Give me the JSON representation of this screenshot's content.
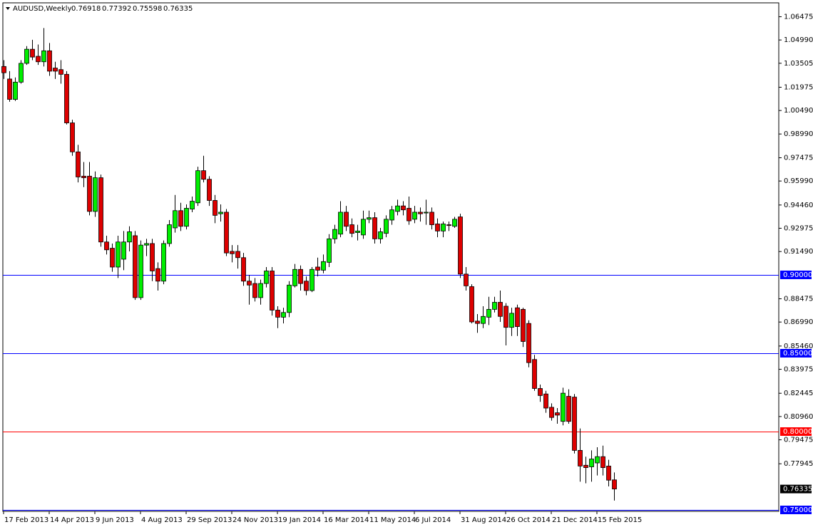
{
  "chart_data": {
    "type": "candlestick",
    "title": "AUDUSD,Weekly",
    "categories": [
      "17 Feb 2013",
      null,
      null,
      null,
      null,
      null,
      null,
      null,
      "14 Apr 2013",
      null,
      null,
      null,
      null,
      null,
      null,
      null,
      "9 Jun 2013",
      null,
      null,
      null,
      null,
      null,
      null,
      null,
      "4 Aug 2013",
      null,
      null,
      null,
      null,
      null,
      null,
      null,
      "29 Sep 2013",
      null,
      null,
      null,
      null,
      null,
      null,
      null,
      "24 Nov 2013",
      null,
      null,
      null,
      null,
      null,
      null,
      null,
      "19 Jan 2014",
      null,
      null,
      null,
      null,
      null,
      null,
      null,
      "16 Mar 2014",
      null,
      null,
      null,
      null,
      null,
      null,
      null,
      "11 May 2014",
      null,
      null,
      null,
      null,
      null,
      null,
      null,
      "6 Jul 2014",
      null,
      null,
      null,
      null,
      null,
      null,
      null,
      "31 Aug 2014",
      null,
      null,
      null,
      null,
      null,
      null,
      null,
      "26 Oct 2014",
      null,
      null,
      null,
      null,
      null,
      null,
      null,
      "21 Dec 2014",
      null,
      null,
      null,
      null,
      null,
      null,
      null,
      "15 Feb 2015",
      null,
      null,
      null
    ],
    "open": [
      1.033,
      1.025,
      1.012,
      1.023,
      1.035,
      1.044,
      1.0395,
      1.036,
      1.043,
      1.032,
      1.031,
      1.028,
      0.997,
      0.9785,
      0.963,
      0.963,
      0.9405,
      0.962,
      0.921,
      0.917,
      0.905,
      0.91,
      0.921,
      0.925,
      0.8855,
      0.919,
      0.92,
      0.904,
      0.896,
      0.92,
      0.93,
      0.941,
      0.931,
      0.942,
      0.946,
      0.9665,
      0.961,
      0.9475,
      0.939,
      0.94,
      0.915,
      0.915,
      0.911,
      0.896,
      0.8945,
      0.8855,
      0.8945,
      0.9025,
      0.8775,
      0.873,
      0.876,
      0.893,
      0.9035,
      0.896,
      0.89,
      0.905,
      0.903,
      0.908,
      0.923,
      0.926,
      0.94,
      0.932,
      0.927,
      0.9255,
      0.9355,
      0.9365,
      0.923,
      0.9265,
      0.935,
      0.9405,
      0.944,
      0.9425,
      0.9355,
      0.94,
      0.9395,
      0.94,
      0.9325,
      0.928,
      0.932,
      0.931,
      0.937,
      0.9005,
      0.8925,
      0.8705,
      0.869,
      0.873,
      0.878,
      0.8825,
      0.88,
      0.8665,
      0.879,
      0.878,
      0.869,
      0.846,
      0.8275,
      0.824,
      0.8155,
      0.812,
      0.8065,
      0.8225,
      0.822,
      0.788,
      0.7785,
      0.7775,
      0.78,
      0.784,
      0.778,
      0.76918
    ],
    "high": [
      1.037,
      1.03,
      1.026,
      1.037,
      1.046,
      1.05,
      1.047,
      1.0575,
      1.048,
      1.036,
      1.037,
      1.03,
      0.999,
      0.983,
      0.972,
      0.972,
      0.966,
      0.964,
      0.925,
      0.92,
      0.925,
      0.928,
      0.931,
      0.928,
      0.922,
      0.923,
      0.923,
      0.908,
      0.922,
      0.935,
      0.951,
      0.946,
      0.945,
      0.95,
      0.969,
      0.976,
      0.963,
      0.951,
      0.945,
      0.942,
      0.919,
      0.919,
      0.914,
      0.9,
      0.898,
      0.897,
      0.905,
      0.905,
      0.88,
      0.879,
      0.896,
      0.907,
      0.906,
      0.899,
      0.905,
      0.911,
      0.913,
      0.926,
      0.932,
      0.947,
      0.944,
      0.936,
      0.932,
      0.941,
      0.941,
      0.94,
      0.93,
      0.938,
      0.944,
      0.948,
      0.947,
      0.95,
      0.944,
      0.943,
      0.948,
      0.943,
      0.936,
      0.934,
      0.934,
      0.937,
      0.939,
      0.905,
      0.894,
      0.875,
      0.88,
      0.886,
      0.886,
      0.89,
      0.882,
      0.879,
      0.881,
      0.879,
      0.871,
      0.849,
      0.83,
      0.826,
      0.818,
      0.815,
      0.828,
      0.827,
      0.824,
      0.802,
      0.784,
      0.788,
      0.79,
      0.791,
      0.782,
      0.77392
    ],
    "low": [
      1.025,
      1.0105,
      1.011,
      1.022,
      1.034,
      1.037,
      1.034,
      1.033,
      1.027,
      1.025,
      1.022,
      0.996,
      0.976,
      0.959,
      0.956,
      0.938,
      0.937,
      0.918,
      0.913,
      0.902,
      0.898,
      0.903,
      0.915,
      0.884,
      0.884,
      0.912,
      0.896,
      0.89,
      0.894,
      0.918,
      0.927,
      0.928,
      0.929,
      0.94,
      0.944,
      0.959,
      0.944,
      0.933,
      0.934,
      0.912,
      0.908,
      0.904,
      0.893,
      0.881,
      0.883,
      0.881,
      0.892,
      0.874,
      0.866,
      0.869,
      0.873,
      0.892,
      0.89,
      0.887,
      0.889,
      0.899,
      0.901,
      0.905,
      0.92,
      0.924,
      0.928,
      0.924,
      0.922,
      0.923,
      0.933,
      0.92,
      0.92,
      0.924,
      0.932,
      0.938,
      0.938,
      0.932,
      0.933,
      0.934,
      0.932,
      0.929,
      0.924,
      0.924,
      0.928,
      0.93,
      0.898,
      0.89,
      0.869,
      0.863,
      0.866,
      0.868,
      0.876,
      0.87,
      0.855,
      0.861,
      0.861,
      0.854,
      0.841,
      0.826,
      0.819,
      0.812,
      0.807,
      0.805,
      0.804,
      0.805,
      0.786,
      0.768,
      0.767,
      0.768,
      0.772,
      0.772,
      0.765,
      0.75598
    ],
    "close": [
      1.029,
      1.012,
      1.023,
      1.035,
      1.044,
      1.039,
      1.036,
      1.043,
      1.03,
      1.03,
      1.028,
      0.997,
      0.9785,
      0.9625,
      0.962,
      0.9405,
      0.962,
      0.921,
      0.916,
      0.905,
      0.921,
      0.921,
      0.9275,
      0.8855,
      0.919,
      0.92,
      0.9025,
      0.896,
      0.92,
      0.932,
      0.941,
      0.931,
      0.9425,
      0.947,
      0.9665,
      0.961,
      0.9475,
      0.938,
      0.94,
      0.914,
      0.9135,
      0.911,
      0.896,
      0.8935,
      0.8855,
      0.8945,
      0.9025,
      0.8775,
      0.873,
      0.876,
      0.8935,
      0.9035,
      0.8945,
      0.89,
      0.9035,
      0.903,
      0.9085,
      0.923,
      0.929,
      0.94,
      0.931,
      0.9265,
      0.928,
      0.9355,
      0.9365,
      0.923,
      0.9275,
      0.9355,
      0.9415,
      0.944,
      0.9415,
      0.9345,
      0.94,
      0.939,
      0.94,
      0.932,
      0.928,
      0.9325,
      0.9315,
      0.9355,
      0.9005,
      0.893,
      0.87,
      0.869,
      0.8735,
      0.878,
      0.8825,
      0.8735,
      0.8665,
      0.8755,
      0.867,
      0.8575,
      0.844,
      0.8275,
      0.823,
      0.815,
      0.809,
      0.8105,
      0.8245,
      0.8065,
      0.788,
      0.778,
      0.777,
      0.7825,
      0.784,
      0.777,
      0.769,
      0.76335
    ],
    "up_color": "#00ee00",
    "down_color": "#dd0000",
    "ylim": [
      0.7491,
      1.0736
    ],
    "yticks": [
      1.06475,
      {
        "value": 1.0499,
        "label": "1.04990"
      },
      1.03505,
      1.01975,
      {
        "value": 1.0049,
        "label": "1.00490"
      },
      {
        "value": 0.9899,
        "label": "0.98990"
      },
      0.97475,
      {
        "value": 0.9599,
        "label": "0.95990"
      },
      {
        "value": 0.9446,
        "label": "0.94460"
      },
      0.92975,
      {
        "value": 0.9149,
        "label": "0.91490"
      },
      0.88475,
      {
        "value": 0.8699,
        "label": "0.86990"
      },
      {
        "value": 0.8546,
        "label": "0.85460"
      },
      0.83975,
      0.82445,
      {
        "value": 0.8096,
        "label": "0.80960"
      },
      0.79475,
      0.77945
    ],
    "grid": false,
    "hlines": [
      {
        "value": 0.9,
        "label": "0.90000",
        "color": "#0000ff"
      },
      {
        "value": 0.85,
        "label": "0.85000",
        "color": "#0000ff"
      },
      {
        "value": 0.8,
        "label": "0.80000",
        "color": "#ff0000"
      },
      {
        "value": 0.75,
        "label": "0.75000",
        "color": "#0000ff"
      }
    ]
  }
}
